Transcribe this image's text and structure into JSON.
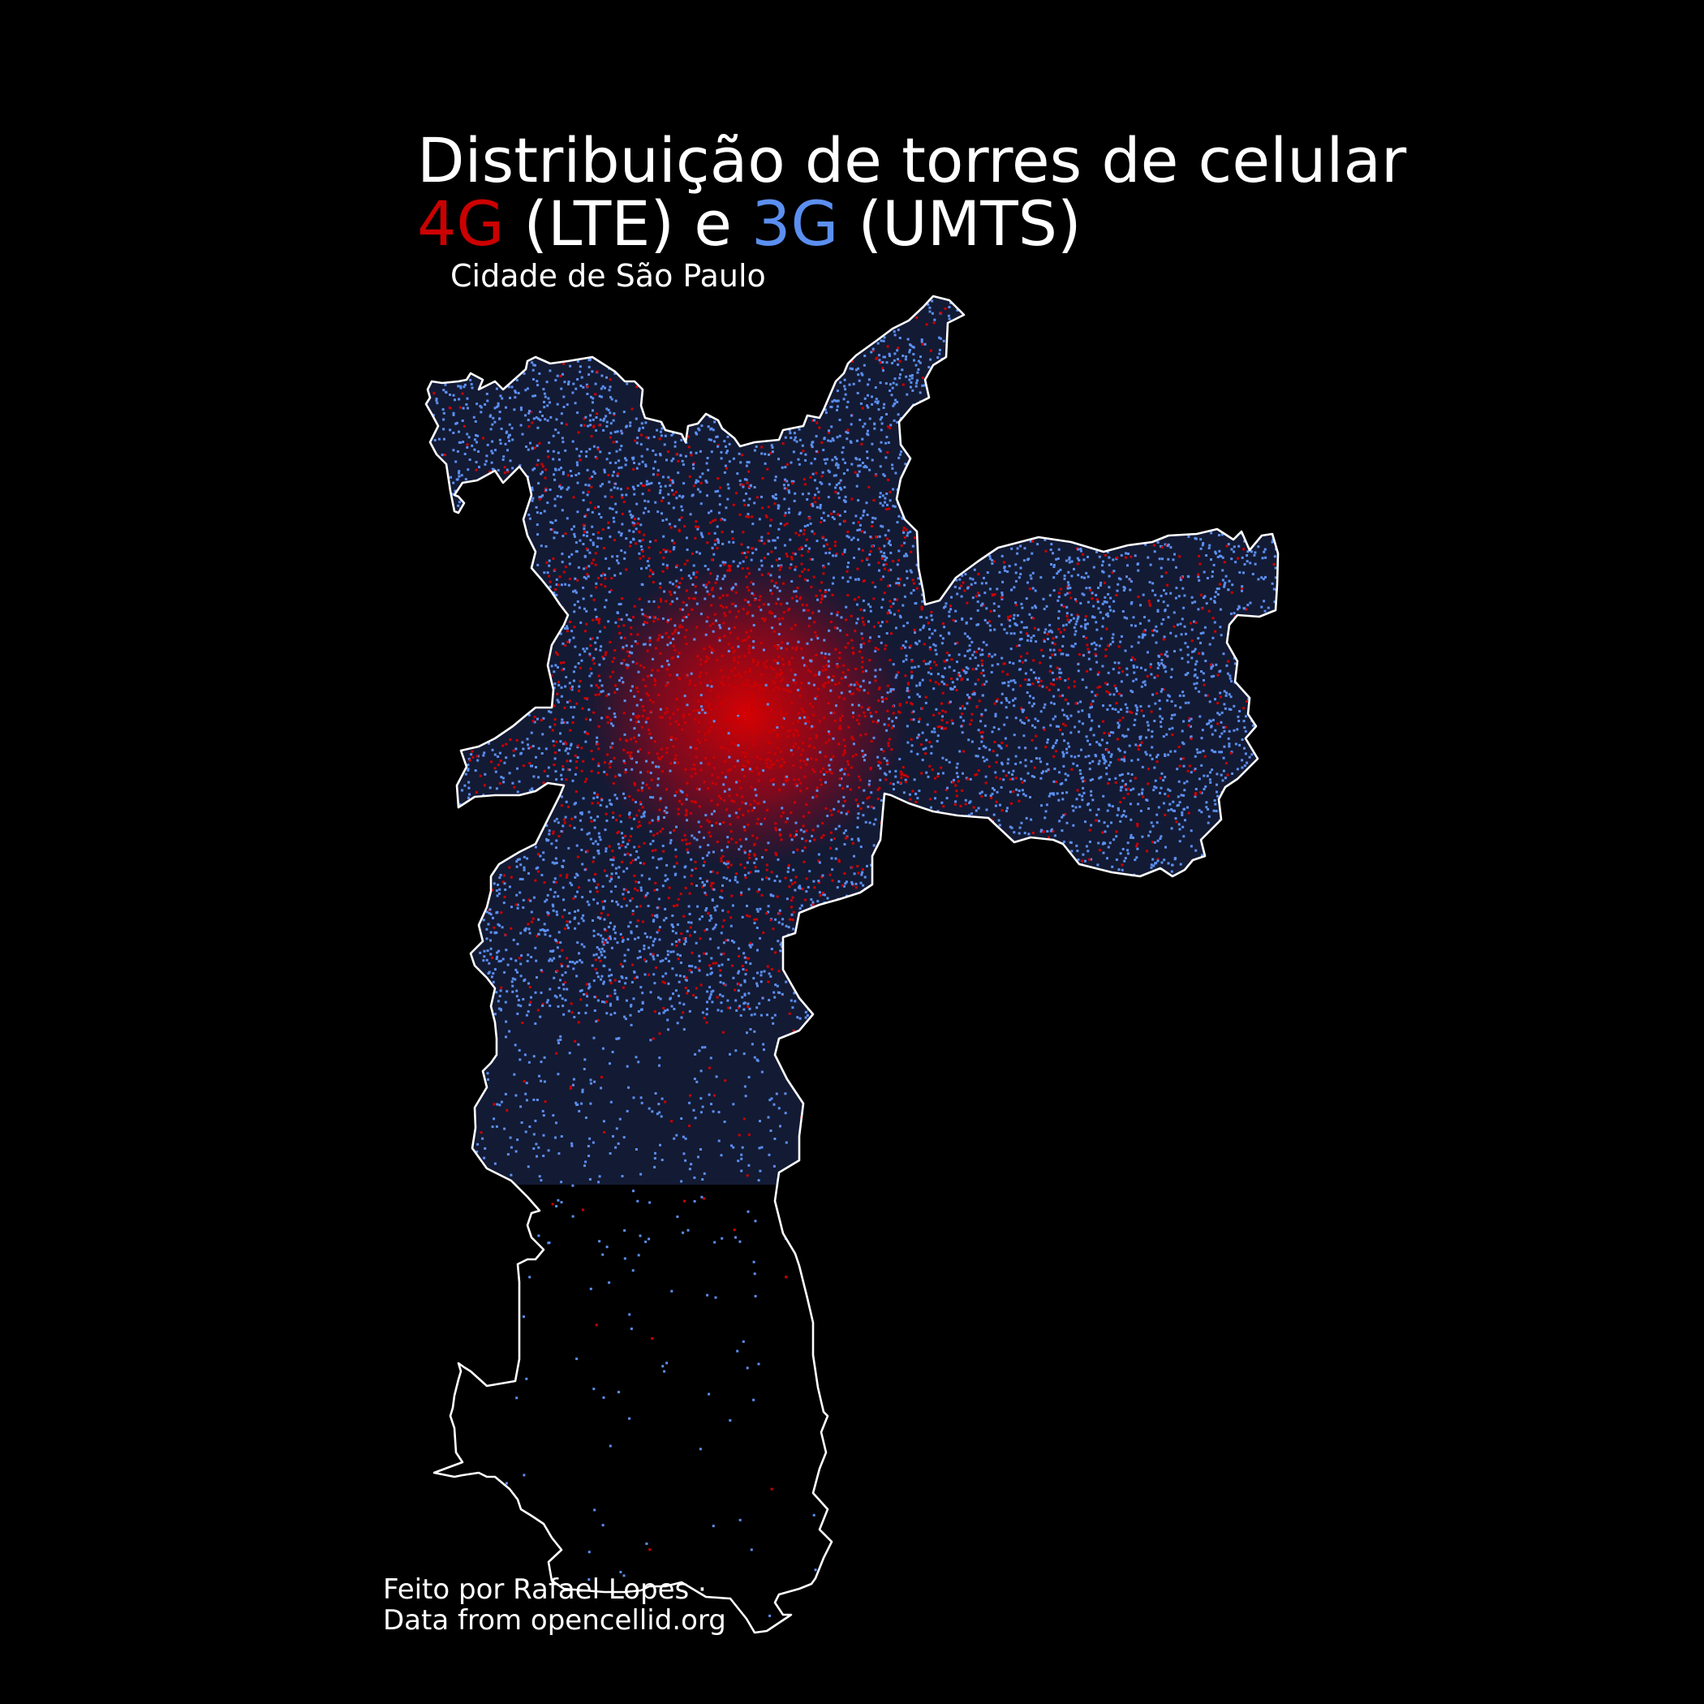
{
  "title": {
    "line1": "Distribuição de torres de celular",
    "tech_4g": "4G",
    "label_lte": " (LTE) e ",
    "tech_3g": "3G",
    "label_umts": " (UMTS)"
  },
  "subtitle": "Cidade de São Paulo",
  "credits": {
    "line1": "Feito por Rafael Lopes ·",
    "line2": "Data from opencellid.org"
  },
  "colors": {
    "background": "#000000",
    "lte_4g": "#cc0000",
    "umts_3g": "#5b8ff0",
    "boundary": "#ffffff",
    "text": "#ffffff"
  },
  "legend": [
    {
      "name": "4G",
      "technology": "LTE",
      "color": "#cc0000"
    },
    {
      "name": "3G",
      "technology": "UMTS",
      "color": "#5b8ff0"
    }
  ]
}
